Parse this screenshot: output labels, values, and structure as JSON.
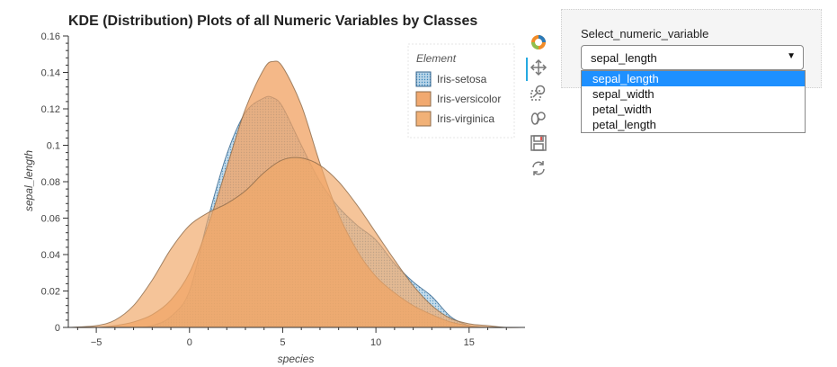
{
  "chart_data": {
    "type": "area",
    "title": "KDE (Distribution) Plots of all Numeric Variables by Classes",
    "xlabel": "species",
    "ylabel": "sepal_length",
    "xlim": [
      -6.5,
      18
    ],
    "ylim": [
      0,
      0.16
    ],
    "xticks": [
      -5,
      0,
      5,
      10,
      15
    ],
    "yticks": [
      0,
      0.02,
      0.04,
      0.06,
      0.08,
      0.1,
      0.12,
      0.14,
      0.16
    ],
    "ytick_labels": [
      "0",
      "0.02",
      "0.04",
      "0.06",
      "0.08",
      "0.1",
      "0.12",
      "0.14",
      "0.16"
    ],
    "legend_title": "Element",
    "legend_position": "top-right",
    "grid": false,
    "series": [
      {
        "name": "Iris-setosa",
        "color": "#1f77b4",
        "x": [
          -6.5,
          -5,
          -3,
          -2,
          -1,
          0,
          1,
          2,
          3,
          4,
          4.5,
          5,
          6,
          7,
          8,
          9,
          10,
          11,
          12,
          13,
          14,
          15,
          16,
          17,
          18
        ],
        "y": [
          0,
          0,
          0,
          0.001,
          0.006,
          0.02,
          0.06,
          0.095,
          0.118,
          0.126,
          0.126,
          0.121,
          0.1,
          0.08,
          0.066,
          0.056,
          0.048,
          0.035,
          0.025,
          0.017,
          0.006,
          0.001,
          0,
          0,
          0
        ]
      },
      {
        "name": "Iris-versicolor",
        "color": "#e8a060",
        "x": [
          -6.5,
          -5,
          -4,
          -3,
          -2,
          -1,
          0,
          1,
          2,
          3,
          4,
          4.5,
          5,
          6,
          7,
          8,
          9,
          10,
          11,
          12,
          13,
          14,
          15,
          16,
          18
        ],
        "y": [
          0,
          0,
          0.001,
          0.003,
          0.007,
          0.015,
          0.03,
          0.056,
          0.088,
          0.12,
          0.142,
          0.146,
          0.143,
          0.122,
          0.09,
          0.062,
          0.042,
          0.028,
          0.019,
          0.012,
          0.007,
          0.003,
          0.001,
          0,
          0
        ]
      },
      {
        "name": "Iris-virginica",
        "color": "#f0a868",
        "x": [
          -6.5,
          -5,
          -4,
          -3,
          -2,
          -1,
          0,
          1,
          2,
          3,
          4,
          5,
          6,
          7,
          8,
          9,
          10,
          11,
          12,
          13,
          14,
          15,
          16,
          17,
          18
        ],
        "y": [
          0,
          0.001,
          0.004,
          0.012,
          0.026,
          0.043,
          0.056,
          0.063,
          0.068,
          0.075,
          0.085,
          0.092,
          0.093,
          0.089,
          0.08,
          0.067,
          0.052,
          0.037,
          0.023,
          0.012,
          0.005,
          0.002,
          0.001,
          0,
          0
        ]
      }
    ]
  },
  "toolbar": {
    "tools": [
      "bokeh-logo-icon",
      "pan-icon",
      "box-zoom-icon",
      "wheel-zoom-icon",
      "save-icon",
      "reset-icon"
    ]
  },
  "widget": {
    "label": "Select_numeric_variable",
    "selected": "sepal_length",
    "options": [
      "sepal_length",
      "sepal_width",
      "petal_width",
      "petal_length"
    ]
  }
}
